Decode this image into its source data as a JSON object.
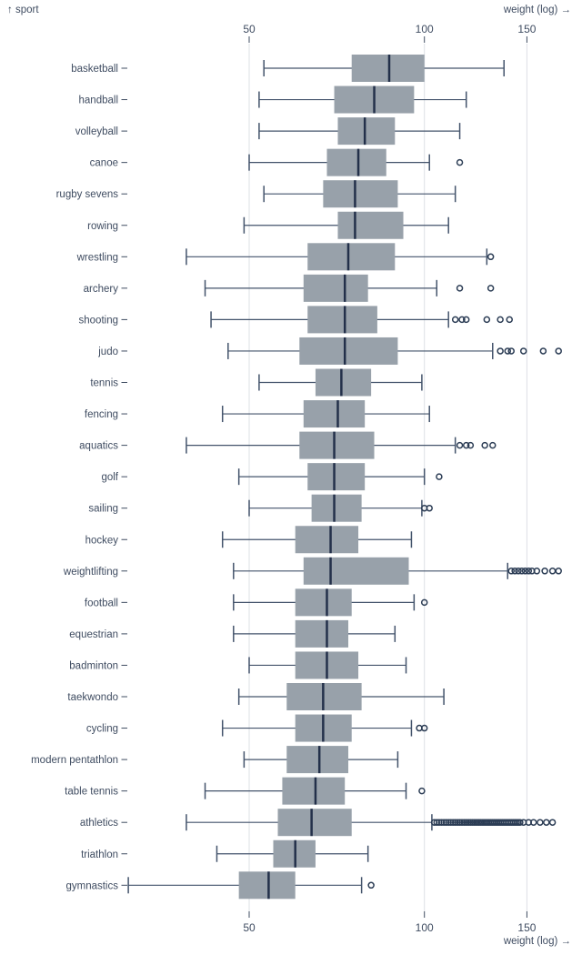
{
  "labels": {
    "y_axis": "↑ sport",
    "x_axis": "weight (log) →"
  },
  "colors": {
    "background": "#ffffff",
    "box_fill": "#98a1aa",
    "median": "#23304a",
    "whisker": "#43536b",
    "outlier": "#2c3d55",
    "grid": "#dde0e5",
    "text": "#3f4c61"
  },
  "chart_data": {
    "type": "boxplot-horizontal",
    "xlabel": "weight (log)",
    "ylabel": "sport",
    "x_scale": "log",
    "x_ticks": [
      50,
      100,
      150
    ],
    "x_domain": [
      31,
      170
    ],
    "grid": true,
    "series": [
      {
        "sport": "basketball",
        "min": 53,
        "q1": 75,
        "median": 87,
        "q3": 100,
        "max": 137,
        "outliers": []
      },
      {
        "sport": "handball",
        "min": 52,
        "q1": 70,
        "median": 82,
        "q3": 96,
        "max": 118,
        "outliers": []
      },
      {
        "sport": "volleyball",
        "min": 52,
        "q1": 71,
        "median": 79,
        "q3": 89,
        "max": 115,
        "outliers": []
      },
      {
        "sport": "canoe",
        "min": 50,
        "q1": 68,
        "median": 77,
        "q3": 86,
        "max": 102,
        "outliers": [
          115
        ]
      },
      {
        "sport": "rugby sevens",
        "min": 53,
        "q1": 67,
        "median": 76,
        "q3": 90,
        "max": 113,
        "outliers": []
      },
      {
        "sport": "rowing",
        "min": 49,
        "q1": 71,
        "median": 76,
        "q3": 92,
        "max": 110,
        "outliers": []
      },
      {
        "sport": "wrestling",
        "min": 39,
        "q1": 63,
        "median": 74,
        "q3": 89,
        "max": 128,
        "outliers": [
          130
        ]
      },
      {
        "sport": "archery",
        "min": 42,
        "q1": 62,
        "median": 73,
        "q3": 80,
        "max": 105,
        "outliers": [
          115,
          130
        ]
      },
      {
        "sport": "shooting",
        "min": 43,
        "q1": 63,
        "median": 73,
        "q3": 83,
        "max": 110,
        "outliers": [
          113,
          116,
          118,
          128,
          135,
          140
        ]
      },
      {
        "sport": "judo",
        "min": 46,
        "q1": 61,
        "median": 73,
        "q3": 90,
        "max": 131,
        "outliers": [
          135,
          139,
          141,
          148,
          160,
          170
        ]
      },
      {
        "sport": "tennis",
        "min": 52,
        "q1": 65,
        "median": 72,
        "q3": 81,
        "max": 99,
        "outliers": []
      },
      {
        "sport": "fencing",
        "min": 45,
        "q1": 62,
        "median": 71,
        "q3": 79,
        "max": 102,
        "outliers": []
      },
      {
        "sport": "aquatics",
        "min": 39,
        "q1": 61,
        "median": 70,
        "q3": 82,
        "max": 113,
        "outliers": [
          115,
          118,
          120,
          127,
          131
        ]
      },
      {
        "sport": "golf",
        "min": 48,
        "q1": 63,
        "median": 70,
        "q3": 79,
        "max": 100,
        "outliers": [
          106
        ]
      },
      {
        "sport": "sailing",
        "min": 50,
        "q1": 64,
        "median": 70,
        "q3": 78,
        "max": 99,
        "outliers": [
          100,
          102
        ]
      },
      {
        "sport": "hockey",
        "min": 45,
        "q1": 60,
        "median": 69,
        "q3": 77,
        "max": 95,
        "outliers": []
      },
      {
        "sport": "weightlifting",
        "min": 47,
        "q1": 62,
        "median": 69,
        "q3": 94,
        "max": 139,
        "outliers": [
          141,
          143,
          145,
          147,
          149,
          151,
          153,
          156,
          161,
          166,
          170
        ]
      },
      {
        "sport": "football",
        "min": 47,
        "q1": 60,
        "median": 68,
        "q3": 75,
        "max": 96,
        "outliers": [
          100
        ]
      },
      {
        "sport": "equestrian",
        "min": 47,
        "q1": 60,
        "median": 68,
        "q3": 74,
        "max": 89,
        "outliers": []
      },
      {
        "sport": "badminton",
        "min": 50,
        "q1": 60,
        "median": 68,
        "q3": 77,
        "max": 93,
        "outliers": []
      },
      {
        "sport": "taekwondo",
        "min": 48,
        "q1": 58,
        "median": 67,
        "q3": 78,
        "max": 108,
        "outliers": []
      },
      {
        "sport": "cycling",
        "min": 45,
        "q1": 60,
        "median": 67,
        "q3": 75,
        "max": 95,
        "outliers": [
          98,
          100
        ]
      },
      {
        "sport": "modern pentathlon",
        "min": 49,
        "q1": 58,
        "median": 66,
        "q3": 74,
        "max": 90,
        "outliers": []
      },
      {
        "sport": "table tennis",
        "min": 42,
        "q1": 57,
        "median": 65,
        "q3": 73,
        "max": 93,
        "outliers": [
          99
        ]
      },
      {
        "sport": "athletics",
        "min": 39,
        "q1": 56,
        "median": 64,
        "q3": 75,
        "max": 103,
        "outliers": [
          104,
          105,
          106,
          107,
          108,
          109,
          110,
          111,
          112,
          113,
          114,
          115,
          116,
          117,
          118,
          119,
          120,
          121,
          122,
          123,
          124,
          125,
          126,
          127,
          128,
          129,
          130,
          131,
          132,
          133,
          134,
          135,
          136,
          137,
          138,
          139,
          140,
          141,
          142,
          143,
          144,
          145,
          146,
          148,
          151,
          154,
          158,
          162,
          166
        ]
      },
      {
        "sport": "triathlon",
        "min": 44,
        "q1": 55,
        "median": 60,
        "q3": 65,
        "max": 80,
        "outliers": []
      },
      {
        "sport": "gymnastics",
        "min": 31,
        "q1": 48,
        "median": 54,
        "q3": 60,
        "max": 78,
        "outliers": [
          81
        ]
      }
    ]
  }
}
